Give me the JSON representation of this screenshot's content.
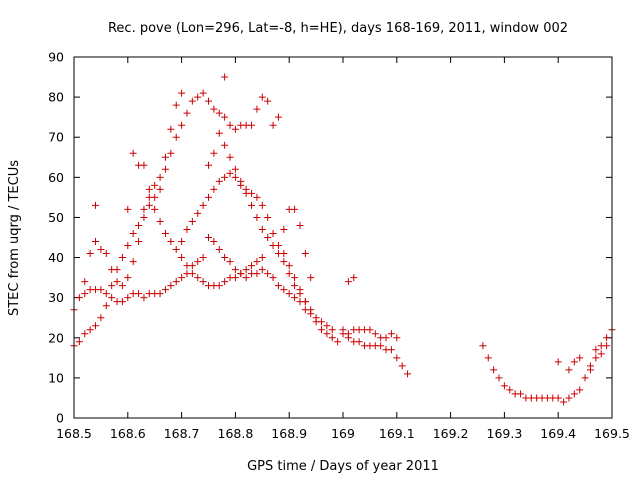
{
  "chart_data": {
    "type": "scatter",
    "title": "Rec. pove (Lon=296, Lat=-8, h=HE), days 168-169, 2011, window 002",
    "xlabel": "GPS time / Days of year 2011",
    "ylabel": "STEC from uqrg / TECUs",
    "xlim": [
      168.5,
      169.5
    ],
    "ylim": [
      0,
      90
    ],
    "grid": false,
    "legend": "none",
    "marker": "plus",
    "color": "#cc0000",
    "x_ticks": [
      "168.5",
      "168.6",
      "168.7",
      "168.8",
      "168.9",
      "169",
      "169.1",
      "169.2",
      "169.3",
      "169.4",
      "169.5"
    ],
    "y_ticks": [
      "0",
      "10",
      "20",
      "30",
      "40",
      "50",
      "60",
      "70",
      "80",
      "90"
    ],
    "points": [
      [
        168.5,
        27
      ],
      [
        168.51,
        30
      ],
      [
        168.52,
        31
      ],
      [
        168.53,
        32
      ],
      [
        168.54,
        32
      ],
      [
        168.55,
        32
      ],
      [
        168.56,
        31
      ],
      [
        168.57,
        30
      ],
      [
        168.58,
        29
      ],
      [
        168.59,
        29
      ],
      [
        168.6,
        30
      ],
      [
        168.61,
        31
      ],
      [
        168.62,
        31
      ],
      [
        168.63,
        30
      ],
      [
        168.64,
        31
      ],
      [
        168.65,
        31
      ],
      [
        168.66,
        31
      ],
      [
        168.67,
        32
      ],
      [
        168.68,
        33
      ],
      [
        168.69,
        34
      ],
      [
        168.7,
        35
      ],
      [
        168.71,
        36
      ],
      [
        168.72,
        38
      ],
      [
        168.73,
        39
      ],
      [
        168.74,
        40
      ],
      [
        168.5,
        18
      ],
      [
        168.51,
        19
      ],
      [
        168.52,
        21
      ],
      [
        168.53,
        22
      ],
      [
        168.54,
        23
      ],
      [
        168.55,
        25
      ],
      [
        168.56,
        28
      ],
      [
        168.57,
        33
      ],
      [
        168.58,
        37
      ],
      [
        168.59,
        40
      ],
      [
        168.6,
        43
      ],
      [
        168.61,
        46
      ],
      [
        168.62,
        48
      ],
      [
        168.63,
        52
      ],
      [
        168.64,
        55
      ],
      [
        168.65,
        58
      ],
      [
        168.66,
        60
      ],
      [
        168.67,
        65
      ],
      [
        168.68,
        72
      ],
      [
        168.69,
        78
      ],
      [
        168.7,
        81
      ],
      [
        168.52,
        34
      ],
      [
        168.53,
        41
      ],
      [
        168.54,
        44
      ],
      [
        168.55,
        42
      ],
      [
        168.56,
        41
      ],
      [
        168.57,
        37
      ],
      [
        168.58,
        34
      ],
      [
        168.59,
        33
      ],
      [
        168.6,
        35
      ],
      [
        168.61,
        39
      ],
      [
        168.62,
        44
      ],
      [
        168.63,
        50
      ],
      [
        168.64,
        53
      ],
      [
        168.65,
        55
      ],
      [
        168.66,
        57
      ],
      [
        168.67,
        62
      ],
      [
        168.68,
        66
      ],
      [
        168.69,
        70
      ],
      [
        168.7,
        73
      ],
      [
        168.71,
        76
      ],
      [
        168.72,
        79
      ],
      [
        168.73,
        80
      ],
      [
        168.74,
        81
      ],
      [
        168.75,
        79
      ],
      [
        168.76,
        77
      ],
      [
        168.77,
        76
      ],
      [
        168.78,
        85
      ],
      [
        168.54,
        53
      ],
      [
        168.6,
        52
      ],
      [
        168.61,
        66
      ],
      [
        168.62,
        63
      ],
      [
        168.63,
        63
      ],
      [
        168.64,
        57
      ],
      [
        168.65,
        52
      ],
      [
        168.66,
        49
      ],
      [
        168.67,
        46
      ],
      [
        168.68,
        44
      ],
      [
        168.69,
        42
      ],
      [
        168.7,
        40
      ],
      [
        168.71,
        38
      ],
      [
        168.72,
        36
      ],
      [
        168.73,
        35
      ],
      [
        168.74,
        34
      ],
      [
        168.75,
        33
      ],
      [
        168.76,
        33
      ],
      [
        168.77,
        33
      ],
      [
        168.78,
        34
      ],
      [
        168.79,
        35
      ],
      [
        168.8,
        35
      ],
      [
        168.81,
        36
      ],
      [
        168.82,
        37
      ],
      [
        168.83,
        38
      ],
      [
        168.84,
        39
      ],
      [
        168.85,
        40
      ],
      [
        168.7,
        44
      ],
      [
        168.71,
        47
      ],
      [
        168.72,
        49
      ],
      [
        168.73,
        51
      ],
      [
        168.74,
        53
      ],
      [
        168.75,
        55
      ],
      [
        168.76,
        57
      ],
      [
        168.77,
        59
      ],
      [
        168.78,
        60
      ],
      [
        168.79,
        61
      ],
      [
        168.8,
        60
      ],
      [
        168.81,
        58
      ],
      [
        168.82,
        57
      ],
      [
        168.83,
        56
      ],
      [
        168.84,
        55
      ],
      [
        168.85,
        53
      ],
      [
        168.86,
        50
      ],
      [
        168.87,
        46
      ],
      [
        168.88,
        43
      ],
      [
        168.89,
        41
      ],
      [
        168.9,
        38
      ],
      [
        168.91,
        35
      ],
      [
        168.92,
        32
      ],
      [
        168.93,
        29
      ],
      [
        168.94,
        27
      ],
      [
        168.95,
        25
      ],
      [
        168.96,
        24
      ],
      [
        168.97,
        23
      ],
      [
        168.98,
        22
      ],
      [
        168.75,
        63
      ],
      [
        168.76,
        66
      ],
      [
        168.77,
        71
      ],
      [
        168.78,
        75
      ],
      [
        168.79,
        73
      ],
      [
        168.8,
        72
      ],
      [
        168.81,
        73
      ],
      [
        168.82,
        73
      ],
      [
        168.83,
        73
      ],
      [
        168.84,
        77
      ],
      [
        168.85,
        80
      ],
      [
        168.86,
        79
      ],
      [
        168.87,
        73
      ],
      [
        168.88,
        75
      ],
      [
        168.75,
        45
      ],
      [
        168.76,
        44
      ],
      [
        168.77,
        42
      ],
      [
        168.78,
        40
      ],
      [
        168.79,
        39
      ],
      [
        168.8,
        37
      ],
      [
        168.81,
        36
      ],
      [
        168.82,
        35
      ],
      [
        168.83,
        36
      ],
      [
        168.84,
        36
      ],
      [
        168.85,
        37
      ],
      [
        168.86,
        36
      ],
      [
        168.87,
        35
      ],
      [
        168.88,
        33
      ],
      [
        168.89,
        32
      ],
      [
        168.9,
        31
      ],
      [
        168.91,
        30
      ],
      [
        168.92,
        29
      ],
      [
        168.93,
        27
      ],
      [
        168.94,
        26
      ],
      [
        168.95,
        24
      ],
      [
        168.96,
        22
      ],
      [
        168.97,
        21
      ],
      [
        168.98,
        20
      ],
      [
        168.99,
        19
      ],
      [
        168.78,
        68
      ],
      [
        168.79,
        65
      ],
      [
        168.8,
        62
      ],
      [
        168.81,
        59
      ],
      [
        168.82,
        56
      ],
      [
        168.83,
        53
      ],
      [
        168.84,
        50
      ],
      [
        168.85,
        47
      ],
      [
        168.86,
        45
      ],
      [
        168.87,
        43
      ],
      [
        168.88,
        41
      ],
      [
        168.89,
        39
      ],
      [
        168.9,
        36
      ],
      [
        168.91,
        33
      ],
      [
        168.92,
        31
      ],
      [
        168.93,
        29
      ],
      [
        168.89,
        47
      ],
      [
        168.9,
        52
      ],
      [
        168.91,
        52
      ],
      [
        168.92,
        48
      ],
      [
        168.93,
        41
      ],
      [
        168.94,
        35
      ],
      [
        169.0,
        22
      ],
      [
        169.01,
        21
      ],
      [
        169.02,
        22
      ],
      [
        169.03,
        22
      ],
      [
        169.04,
        22
      ],
      [
        169.05,
        22
      ],
      [
        169.06,
        21
      ],
      [
        169.07,
        20
      ],
      [
        169.08,
        20
      ],
      [
        169.09,
        21
      ],
      [
        169.1,
        20
      ],
      [
        169.0,
        21
      ],
      [
        169.01,
        20
      ],
      [
        169.02,
        19
      ],
      [
        169.03,
        19
      ],
      [
        169.04,
        18
      ],
      [
        169.05,
        18
      ],
      [
        169.06,
        18
      ],
      [
        169.07,
        18
      ],
      [
        169.08,
        17
      ],
      [
        169.09,
        17
      ],
      [
        169.1,
        15
      ],
      [
        169.11,
        13
      ],
      [
        169.12,
        11
      ],
      [
        169.01,
        34
      ],
      [
        169.02,
        35
      ],
      [
        169.26,
        18
      ],
      [
        169.27,
        15
      ],
      [
        169.28,
        12
      ],
      [
        169.29,
        10
      ],
      [
        169.3,
        8
      ],
      [
        169.31,
        7
      ],
      [
        169.32,
        6
      ],
      [
        169.33,
        6
      ],
      [
        169.34,
        5
      ],
      [
        169.35,
        5
      ],
      [
        169.36,
        5
      ],
      [
        169.37,
        5
      ],
      [
        169.38,
        5
      ],
      [
        169.39,
        5
      ],
      [
        169.4,
        5
      ],
      [
        169.41,
        4
      ],
      [
        169.42,
        5
      ],
      [
        169.43,
        6
      ],
      [
        169.44,
        7
      ],
      [
        169.45,
        10
      ],
      [
        169.46,
        12
      ],
      [
        169.47,
        15
      ],
      [
        169.48,
        18
      ],
      [
        169.49,
        20
      ],
      [
        169.5,
        22
      ],
      [
        169.4,
        14
      ],
      [
        169.42,
        12
      ],
      [
        169.43,
        14
      ],
      [
        169.44,
        15
      ],
      [
        169.46,
        13
      ],
      [
        169.47,
        17
      ],
      [
        169.48,
        16
      ],
      [
        169.49,
        18
      ]
    ]
  }
}
